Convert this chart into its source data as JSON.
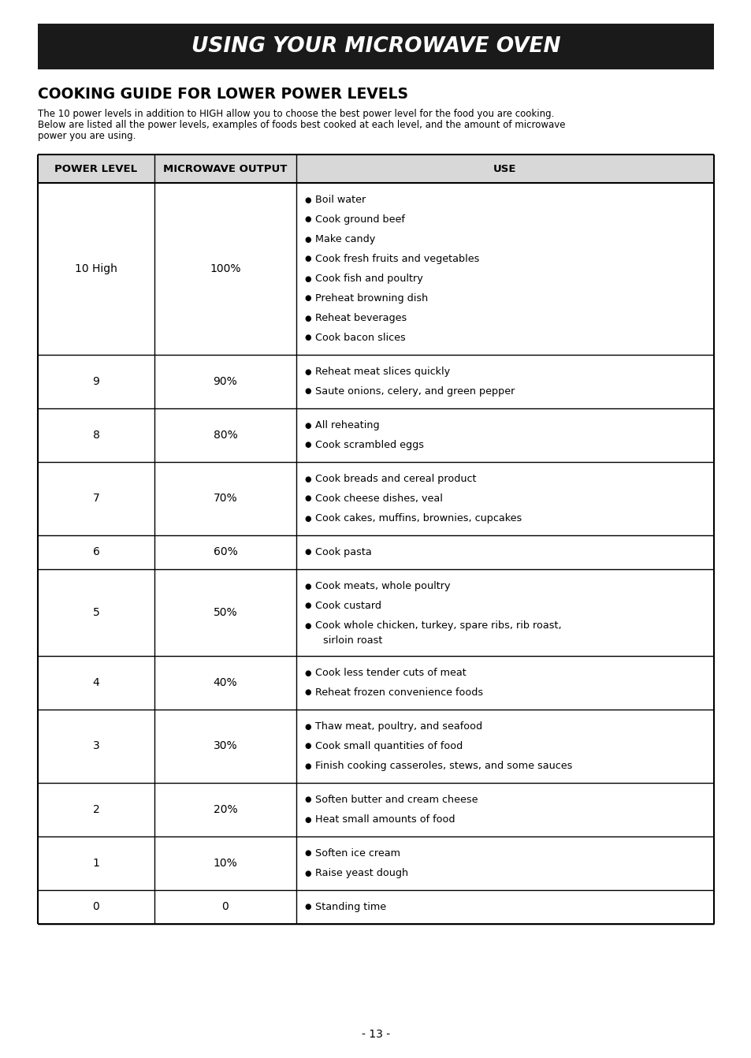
{
  "title_banner": "USING YOUR MICROWAVE OVEN",
  "section_title": "COOKING GUIDE FOR LOWER POWER LEVELS",
  "intro_line1": "The 10 power levels in addition to HIGH allow you to choose the best power level for the food you are cooking.",
  "intro_line2": "Below are listed all the power levels, examples of foods best cooked at each level, and the amount of microwave",
  "intro_line3": "power you are using.",
  "col_headers": [
    "POWER LEVEL",
    "MICROWAVE OUTPUT",
    "USE"
  ],
  "rows": [
    {
      "power": "10 High",
      "output": "100%",
      "uses": [
        "Boil water",
        "Cook ground beef",
        "Make candy",
        "Cook fresh fruits and vegetables",
        "Cook fish and poultry",
        "Preheat browning dish",
        "Reheat beverages",
        "Cook bacon slices"
      ]
    },
    {
      "power": "9",
      "output": "90%",
      "uses": [
        "Reheat meat slices quickly",
        "Saute onions, celery, and green pepper"
      ]
    },
    {
      "power": "8",
      "output": "80%",
      "uses": [
        "All reheating",
        "Cook scrambled eggs"
      ]
    },
    {
      "power": "7",
      "output": "70%",
      "uses": [
        "Cook breads and cereal product",
        "Cook cheese dishes, veal",
        "Cook cakes, muffins, brownies, cupcakes"
      ]
    },
    {
      "power": "6",
      "output": "60%",
      "uses": [
        "Cook pasta"
      ]
    },
    {
      "power": "5",
      "output": "50%",
      "uses": [
        "Cook meats, whole poultry",
        "Cook custard",
        "Cook whole chicken, turkey, spare ribs, rib roast,",
        "  sirloin roast"
      ],
      "use_continuation": [
        false,
        false,
        false,
        true
      ]
    },
    {
      "power": "4",
      "output": "40%",
      "uses": [
        "Cook less tender cuts of meat",
        "Reheat frozen convenience foods"
      ]
    },
    {
      "power": "3",
      "output": "30%",
      "uses": [
        "Thaw meat, poultry, and seafood",
        "Cook small quantities of food",
        "Finish cooking casseroles, stews, and some sauces"
      ]
    },
    {
      "power": "2",
      "output": "20%",
      "uses": [
        "Soften butter and cream cheese",
        "Heat small amounts of food"
      ]
    },
    {
      "power": "1",
      "output": "10%",
      "uses": [
        "Soften ice cream",
        "Raise yeast dough"
      ]
    },
    {
      "power": "0",
      "output": "0",
      "uses": [
        "Standing time"
      ]
    }
  ],
  "page_number": "- 13 -",
  "bg_color": "#ffffff",
  "banner_bg": "#1a1a1a",
  "banner_text_color": "#ffffff",
  "table_border_color": "#000000",
  "header_bg": "#d8d8d8"
}
